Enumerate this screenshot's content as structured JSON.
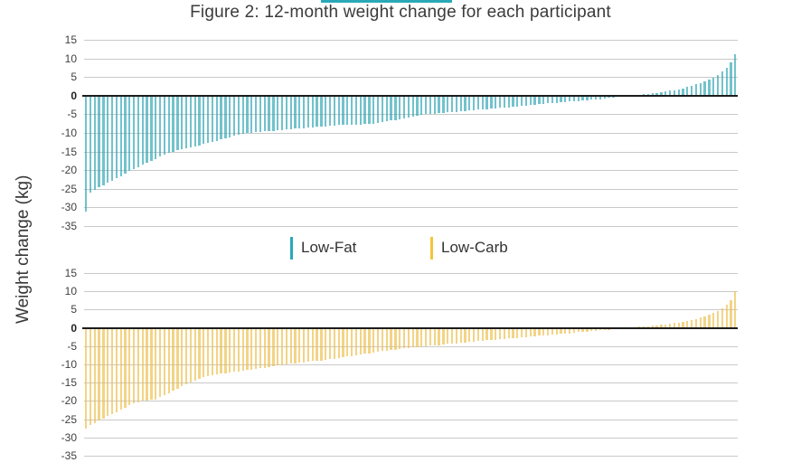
{
  "title": "Figure 2: 12-month weight change for each participant",
  "y_axis_label": "Weight change (kg)",
  "accent_bar_color": "#29a9b8",
  "grid_color": "#c9c9c9",
  "zero_line_color": "#1c1c1c",
  "legend": [
    {
      "label": "Low-Fat",
      "color": "#29a9b8"
    },
    {
      "label": "Low-Carb",
      "color": "#f5c33b"
    }
  ],
  "chart_data": [
    {
      "type": "bar",
      "series_name": "Low-Fat",
      "title": "Figure 2: 12-month weight change for each participant",
      "xlabel": "",
      "ylabel": "Weight change (kg)",
      "ylim": [
        -35,
        15
      ],
      "yticks": [
        15,
        10,
        5,
        0,
        -5,
        -10,
        -15,
        -20,
        -25,
        -30,
        -35
      ],
      "grid": true,
      "bar_color": "#2fa5b4",
      "x_description": "participants sorted by weight change, no x tick labels",
      "values": [
        -31.0,
        -26.0,
        -25.3,
        -24.6,
        -24.0,
        -23.4,
        -22.8,
        -22.2,
        -21.6,
        -21.0,
        -20.3,
        -19.7,
        -19.2,
        -18.6,
        -18.1,
        -17.5,
        -17.0,
        -16.4,
        -15.9,
        -15.3,
        -15.0,
        -14.7,
        -14.4,
        -14.1,
        -13.8,
        -13.6,
        -13.3,
        -13.0,
        -12.7,
        -12.4,
        -12.1,
        -11.8,
        -11.5,
        -11.2,
        -10.8,
        -10.5,
        -10.2,
        -10.0,
        -9.9,
        -9.8,
        -9.7,
        -9.6,
        -9.5,
        -9.4,
        -9.3,
        -9.2,
        -9.1,
        -9.0,
        -8.9,
        -8.8,
        -8.7,
        -8.6,
        -8.5,
        -8.4,
        -8.3,
        -8.2,
        -8.1,
        -8.0,
        -7.9,
        -7.9,
        -7.8,
        -7.8,
        -7.7,
        -7.7,
        -7.6,
        -7.5,
        -7.5,
        -7.3,
        -7.1,
        -6.9,
        -6.7,
        -6.5,
        -6.3,
        -6.1,
        -5.9,
        -5.7,
        -5.4,
        -5.2,
        -5.0,
        -4.9,
        -4.8,
        -4.7,
        -4.6,
        -4.5,
        -4.4,
        -4.3,
        -4.2,
        -4.1,
        -4.0,
        -3.9,
        -3.8,
        -3.7,
        -3.6,
        -3.5,
        -3.4,
        -3.3,
        -3.2,
        -3.1,
        -3.0,
        -2.9,
        -2.8,
        -2.6,
        -2.5,
        -2.4,
        -2.3,
        -2.2,
        -2.1,
        -2.0,
        -1.9,
        -1.8,
        -1.7,
        -1.6,
        -1.5,
        -1.4,
        -1.3,
        -1.2,
        -1.1,
        -1.0,
        -0.9,
        -0.8,
        -0.6,
        -0.5,
        -0.4,
        -0.2,
        -0.1,
        0.1,
        0.2,
        0.3,
        0.4,
        0.5,
        0.6,
        0.8,
        0.9,
        1.1,
        1.3,
        1.5,
        1.7,
        2.0,
        2.3,
        2.6,
        3.0,
        3.4,
        3.8,
        4.3,
        4.9,
        5.6,
        6.5,
        7.5,
        9.0,
        11.0
      ]
    },
    {
      "type": "bar",
      "series_name": "Low-Carb",
      "title": "Figure 2: 12-month weight change for each participant",
      "xlabel": "",
      "ylabel": "Weight change (kg)",
      "ylim": [
        -35,
        15
      ],
      "yticks": [
        15,
        10,
        5,
        0,
        -5,
        -10,
        -15,
        -20,
        -25,
        -30,
        -35
      ],
      "grid": true,
      "bar_color": "#eec04d",
      "x_description": "participants sorted by weight change, no x tick labels",
      "values": [
        -27.5,
        -26.5,
        -26.0,
        -25.4,
        -24.8,
        -24.2,
        -23.6,
        -23.0,
        -22.4,
        -21.8,
        -21.2,
        -20.7,
        -20.3,
        -20.0,
        -19.8,
        -19.7,
        -19.6,
        -19.0,
        -18.4,
        -17.8,
        -17.2,
        -16.6,
        -16.0,
        -15.4,
        -14.9,
        -14.4,
        -13.9,
        -13.5,
        -13.2,
        -13.0,
        -12.8,
        -12.6,
        -12.4,
        -12.3,
        -12.1,
        -11.9,
        -11.7,
        -11.6,
        -11.4,
        -11.2,
        -11.0,
        -10.9,
        -10.7,
        -10.5,
        -10.3,
        -10.2,
        -10.0,
        -9.8,
        -9.7,
        -9.5,
        -9.4,
        -9.2,
        -9.1,
        -9.0,
        -8.9,
        -8.8,
        -8.6,
        -8.4,
        -8.2,
        -8.0,
        -7.8,
        -7.7,
        -7.5,
        -7.3,
        -7.1,
        -7.0,
        -6.8,
        -6.6,
        -6.4,
        -6.3,
        -6.1,
        -6.0,
        -5.8,
        -5.6,
        -5.5,
        -5.3,
        -5.2,
        -5.1,
        -5.0,
        -4.9,
        -4.8,
        -4.7,
        -4.6,
        -4.4,
        -4.3,
        -4.2,
        -4.1,
        -4.0,
        -3.9,
        -3.8,
        -3.6,
        -3.5,
        -3.4,
        -3.3,
        -3.2,
        -3.1,
        -3.0,
        -2.9,
        -2.8,
        -2.7,
        -2.6,
        -2.5,
        -2.4,
        -2.3,
        -2.2,
        -2.1,
        -2.0,
        -1.9,
        -1.8,
        -1.7,
        -1.6,
        -1.5,
        -1.4,
        -1.2,
        -1.1,
        -1.0,
        -0.9,
        -0.8,
        -0.7,
        -0.6,
        -0.5,
        -0.4,
        -0.3,
        -0.2,
        -0.1,
        0.1,
        0.2,
        0.3,
        0.4,
        0.5,
        0.6,
        0.7,
        0.8,
        1.0,
        1.1,
        1.3,
        1.5,
        1.7,
        1.9,
        2.2,
        2.5,
        2.8,
        3.2,
        3.6,
        4.1,
        4.7,
        5.4,
        6.3,
        7.5,
        10.0
      ]
    }
  ]
}
